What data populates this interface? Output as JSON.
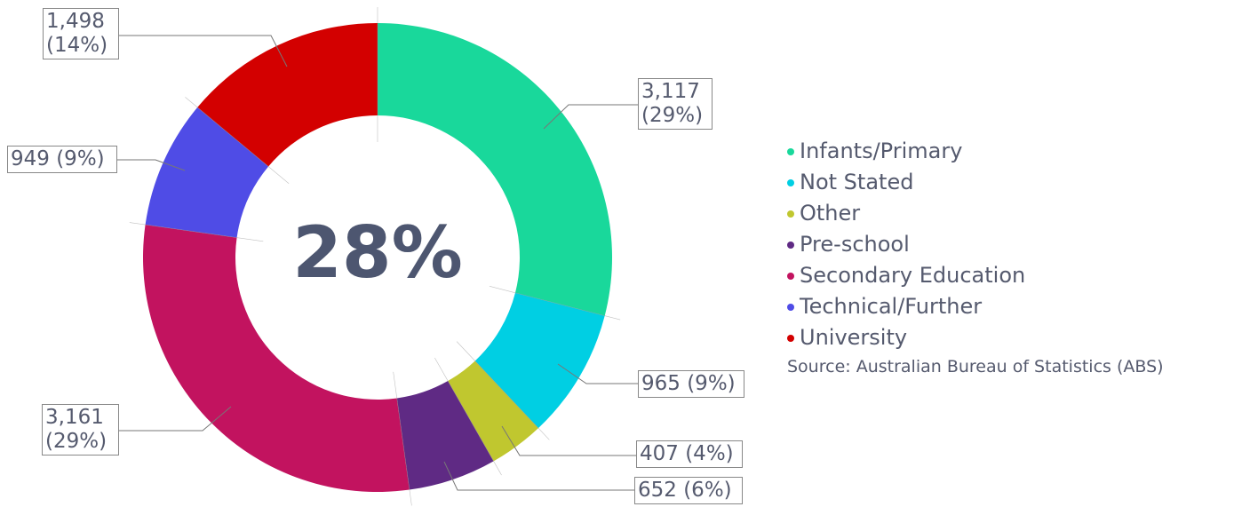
{
  "chart_data": {
    "type": "donut",
    "center_label": "28%",
    "categories": [
      "Infants/Primary",
      "Not Stated",
      "Other",
      "Pre-school",
      "Secondary Education",
      "Technical/Further",
      "University"
    ],
    "values": [
      3117,
      965,
      407,
      652,
      3161,
      949,
      1498
    ],
    "value_labels": [
      "3,117 (29%)",
      "965 (9%)",
      "407 (4%)",
      "652 (6%)",
      "3,161 (29%)",
      "949 (9%)",
      "1,498 (14%)"
    ],
    "colors": [
      "#19d89b",
      "#00cfe3",
      "#c0c72f",
      "#5f2a84",
      "#c2135f",
      "#4f4ce6",
      "#d30000"
    ],
    "source": "Source: Australian Bureau of Statistics (ABS)"
  }
}
